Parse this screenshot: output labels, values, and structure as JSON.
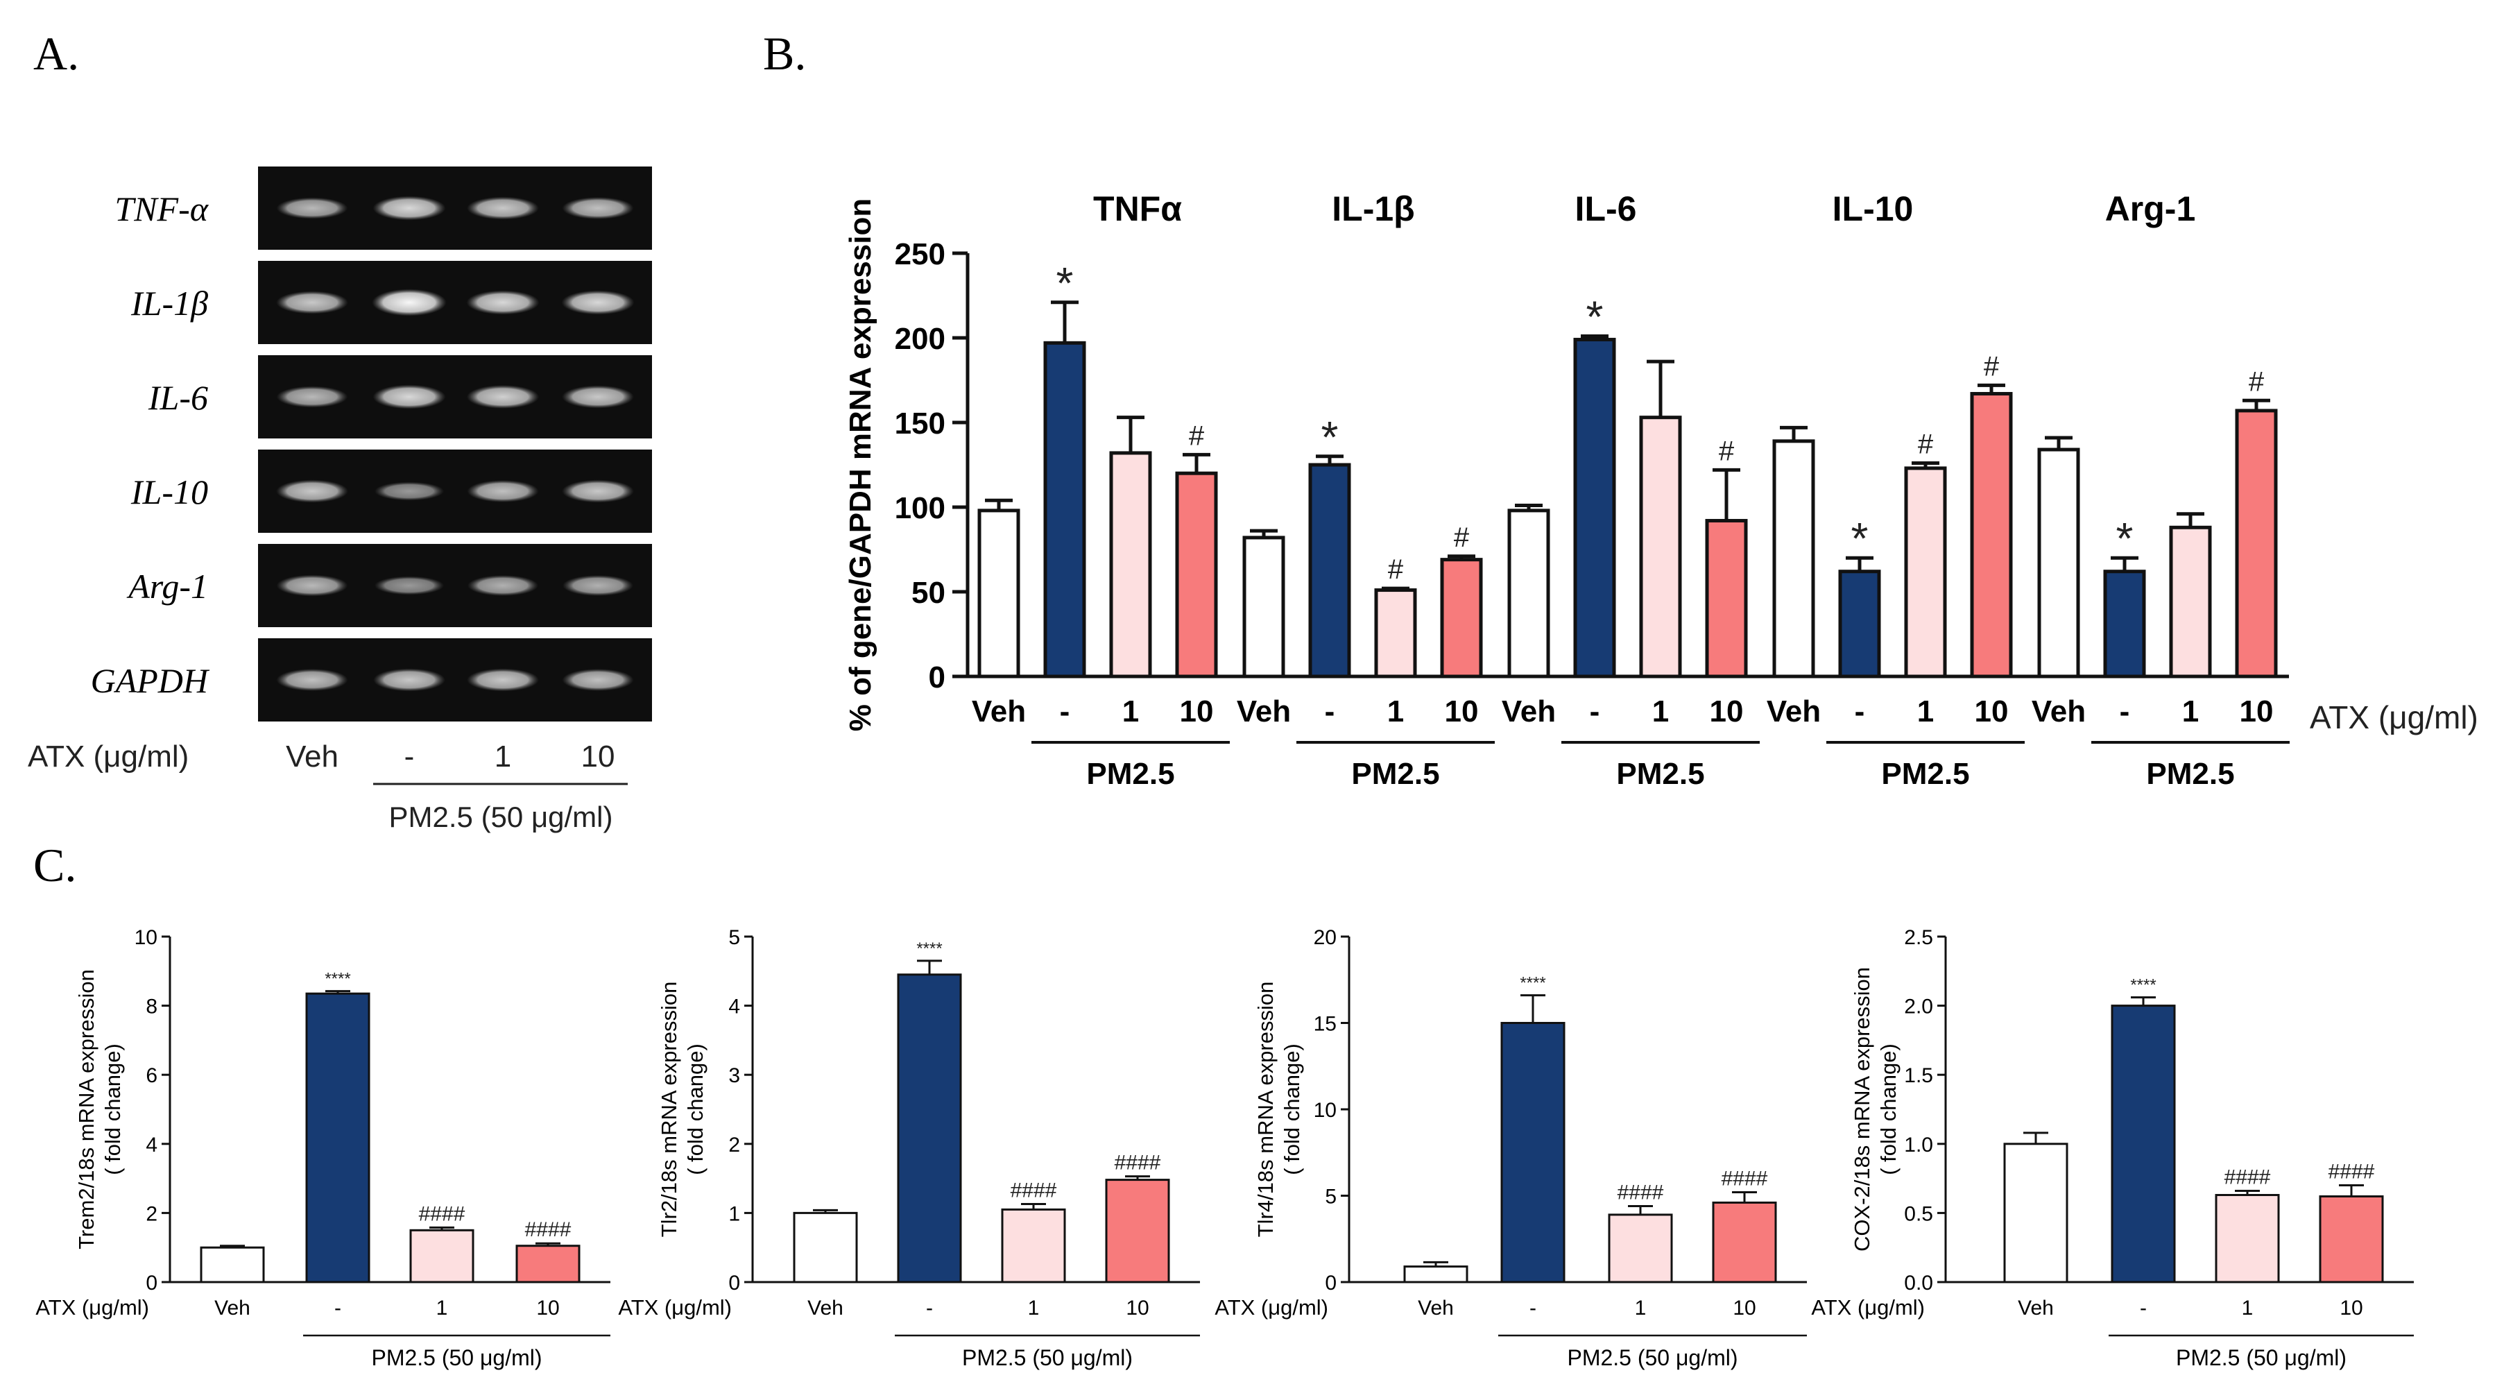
{
  "panels": {
    "a": "A.",
    "b": "B.",
    "c": "C."
  },
  "colors": {
    "veh": "#ffffff",
    "pm": "#173b73",
    "atx1": "#fddfe0",
    "atx10": "#f77b7c",
    "edge": "#111111",
    "gel_bg": "#0e0e0e",
    "band": "#e8e8e8"
  },
  "gel": {
    "genes": [
      "TNF-α",
      "IL-1β",
      "IL-6",
      "IL-10",
      "Arg-1",
      "GAPDH"
    ],
    "band_intensity": [
      [
        0.55,
        0.75,
        0.65,
        0.6
      ],
      [
        0.65,
        0.95,
        0.75,
        0.75
      ],
      [
        0.55,
        0.75,
        0.7,
        0.65
      ],
      [
        0.65,
        0.35,
        0.6,
        0.65
      ],
      [
        0.55,
        0.35,
        0.5,
        0.5
      ],
      [
        0.6,
        0.65,
        0.65,
        0.6
      ]
    ],
    "atx_label": "ATX (μg/ml)",
    "lanes": [
      "Veh",
      "-",
      "1",
      "10"
    ],
    "pm_label": "PM2.5 (50 μg/ml)"
  },
  "chart_data": [
    {
      "id": "B",
      "type": "bar",
      "ylabel": "% of gene/GAPDH mRNA expression",
      "ylim": [
        0,
        250
      ],
      "yticks": [
        0,
        50,
        100,
        150,
        200,
        250
      ],
      "genes": [
        "TNFα",
        "IL-1β",
        "IL-6",
        "IL-10",
        "Arg-1"
      ],
      "categories": [
        "Veh",
        "-",
        "1",
        "10"
      ],
      "values": [
        [
          98,
          197,
          132,
          120
        ],
        [
          82,
          125,
          51,
          69
        ],
        [
          98,
          199,
          153,
          92
        ],
        [
          139,
          62,
          123,
          167
        ],
        [
          134,
          62,
          88,
          157
        ]
      ],
      "errors": [
        [
          6,
          24,
          21,
          11
        ],
        [
          4,
          5,
          1,
          2
        ],
        [
          3,
          2,
          33,
          30
        ],
        [
          8,
          8,
          3,
          5
        ],
        [
          7,
          8,
          8,
          6
        ]
      ],
      "marks": [
        [
          "",
          "*",
          "",
          "#"
        ],
        [
          "",
          "*",
          "#",
          "#"
        ],
        [
          "",
          "*",
          "",
          "#"
        ],
        [
          "",
          "*",
          "#",
          "#"
        ],
        [
          "",
          "*",
          "",
          "#"
        ]
      ],
      "group_label": "PM2.5",
      "x_axis_title": "ATX (μg/ml)"
    },
    {
      "id": "C1",
      "type": "bar",
      "ylabel": "Trem2/18s mRNA expression",
      "ylabel2": "( fold change)",
      "ylim": [
        0,
        10
      ],
      "yticks": [
        0,
        2,
        4,
        6,
        8,
        10
      ],
      "categories": [
        "Veh",
        "-",
        "1",
        "10"
      ],
      "values": [
        1.0,
        8.35,
        1.5,
        1.05
      ],
      "errors": [
        0.05,
        0.07,
        0.08,
        0.07
      ],
      "marks": [
        "",
        "****",
        "####",
        "####"
      ],
      "xlabel_prefix": "ATX (μg/ml)",
      "group_label": "PM2.5 (50 μg/ml)"
    },
    {
      "id": "C2",
      "type": "bar",
      "ylabel": "Tlr2/18s mRNA expression",
      "ylabel2": "( fold change)",
      "ylim": [
        0,
        5
      ],
      "yticks": [
        0,
        1,
        2,
        3,
        4,
        5
      ],
      "categories": [
        "Veh",
        "-",
        "1",
        "10"
      ],
      "values": [
        1.0,
        4.45,
        1.05,
        1.48
      ],
      "errors": [
        0.04,
        0.2,
        0.08,
        0.05
      ],
      "marks": [
        "",
        "****",
        "####",
        "####"
      ],
      "xlabel_prefix": "ATX (μg/ml)",
      "group_label": "PM2.5 (50 μg/ml)"
    },
    {
      "id": "C3",
      "type": "bar",
      "ylabel": "Tlr4/18s mRNA expression",
      "ylabel2": "( fold change)",
      "ylim": [
        0,
        20
      ],
      "yticks": [
        0,
        5,
        10,
        15,
        20
      ],
      "categories": [
        "Veh",
        "-",
        "1",
        "10"
      ],
      "values": [
        0.9,
        15.0,
        3.9,
        4.6
      ],
      "errors": [
        0.25,
        1.6,
        0.5,
        0.6
      ],
      "marks": [
        "",
        "****",
        "####",
        "####"
      ],
      "xlabel_prefix": "ATX (μg/ml)",
      "group_label": "PM2.5 (50 μg/ml)"
    },
    {
      "id": "C4",
      "type": "bar",
      "ylabel": "COX-2/18s mRNA expression",
      "ylabel2": "( fold change)",
      "ylim": [
        0,
        2.5
      ],
      "yticks": [
        "0.0",
        "0.5",
        "1.0",
        "1.5",
        "2.0",
        "2.5"
      ],
      "categories": [
        "Veh",
        "-",
        "1",
        "10"
      ],
      "values": [
        1.0,
        2.0,
        0.63,
        0.62
      ],
      "errors": [
        0.08,
        0.06,
        0.03,
        0.08
      ],
      "marks": [
        "",
        "****",
        "####",
        "####"
      ],
      "xlabel_prefix": "ATX (μg/ml)",
      "group_label": "PM2.5 (50 μg/ml)"
    }
  ]
}
